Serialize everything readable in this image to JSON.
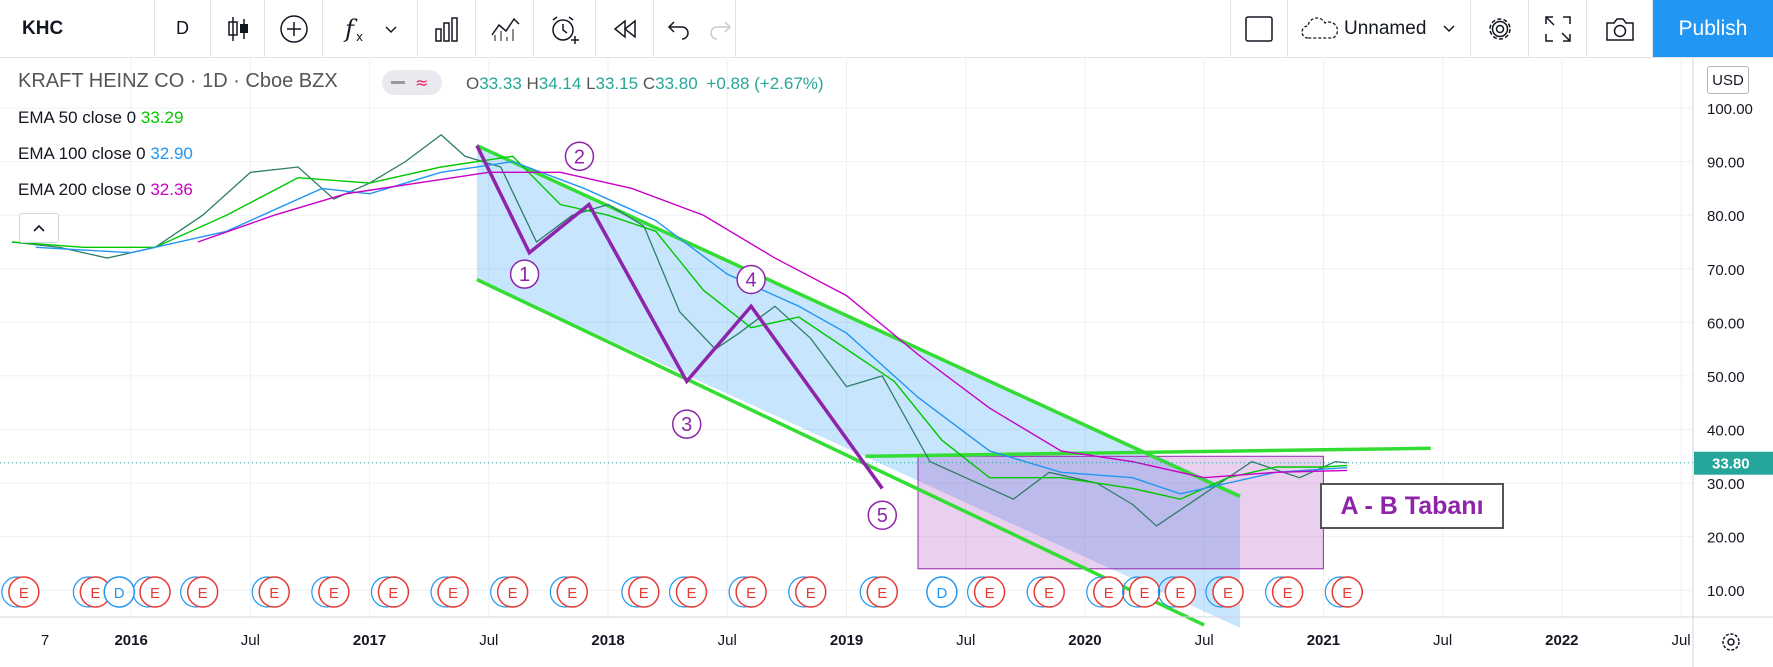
{
  "toolbar": {
    "symbol": "KHC",
    "interval": "D",
    "indicators_icon": "fx-icon",
    "layout_name": "Unnamed",
    "publish_label": "Publish"
  },
  "legend": {
    "title": "KRAFT HEINZ CO · 1D · Cboe BZX",
    "ohlc": {
      "o_label": "O",
      "o": "33.33",
      "h_label": "H",
      "h": "34.14",
      "l_label": "L",
      "l": "33.15",
      "c_label": "C",
      "c": "33.80",
      "change": "+0.88 (+2.67%)"
    },
    "emas": [
      {
        "label": "EMA 50 close 0",
        "value": "33.29",
        "color": "#00c800"
      },
      {
        "label": "EMA 100 close 0",
        "value": "32.90",
        "color": "#2196f3"
      },
      {
        "label": "EMA 200 close 0",
        "value": "32.36",
        "color": "#c800c8"
      }
    ]
  },
  "price_axis": {
    "currency": "USD",
    "last_price": "33.80",
    "last_price_color": "#26a69a"
  },
  "chart_data": {
    "type": "line",
    "title": "KRAFT HEINZ CO · 1D · Cboe BZX",
    "x_ticks": [
      "7",
      "2016",
      "Jul",
      "2017",
      "Jul",
      "2018",
      "Jul",
      "2019",
      "Jul",
      "2020",
      "Jul",
      "2021",
      "Jul",
      "2022",
      "Jul"
    ],
    "y_ticks": [
      "10.00",
      "20.00",
      "30.00",
      "40.00",
      "50.00",
      "60.00",
      "70.00",
      "80.00",
      "90.00",
      "100.00"
    ],
    "ylim": [
      5,
      103
    ],
    "xlim": [
      2015.45,
      2022.55
    ],
    "grid": true,
    "series": [
      {
        "name": "KHC",
        "color": "#26a69a",
        "x": [
          2015.5,
          2015.7,
          2015.9,
          2016.1,
          2016.3,
          2016.5,
          2016.7,
          2016.85,
          2017.0,
          2017.15,
          2017.3,
          2017.4,
          2017.55,
          2017.7,
          2017.85,
          2018.0,
          2018.15,
          2018.3,
          2018.45,
          2018.55,
          2018.7,
          2018.85,
          2019.0,
          2019.15,
          2019.35,
          2019.55,
          2019.7,
          2019.85,
          2020.05,
          2020.2,
          2020.3,
          2020.5,
          2020.7,
          2020.9,
          2021.05,
          2021.1
        ],
        "y": [
          75,
          74,
          72,
          74,
          80,
          88,
          89,
          83,
          86,
          90,
          95,
          91,
          89,
          75,
          80,
          82,
          78,
          62,
          55,
          58,
          63,
          57,
          48,
          50,
          34,
          30,
          27,
          32,
          30,
          26,
          22,
          28,
          34,
          31,
          34,
          33.8
        ]
      },
      {
        "name": "EMA 50 close 0",
        "color": "#00c800",
        "x": [
          2015.5,
          2015.8,
          2016.1,
          2016.4,
          2016.7,
          2017.0,
          2017.3,
          2017.6,
          2017.8,
          2018.0,
          2018.2,
          2018.4,
          2018.6,
          2018.8,
          2019.0,
          2019.2,
          2019.4,
          2019.6,
          2019.9,
          2020.2,
          2020.4,
          2020.6,
          2020.8,
          2021.0,
          2021.1
        ],
        "y": [
          75,
          74,
          74,
          80,
          87,
          86,
          89,
          91,
          82,
          80,
          77,
          66,
          59,
          61,
          55,
          49,
          38,
          31,
          31,
          29,
          27,
          31,
          33,
          33,
          33.29
        ]
      },
      {
        "name": "EMA 100 close 0",
        "color": "#2196f3",
        "x": [
          2015.6,
          2016.0,
          2016.4,
          2016.8,
          2017.0,
          2017.3,
          2017.6,
          2017.9,
          2018.2,
          2018.5,
          2018.8,
          2019.0,
          2019.3,
          2019.6,
          2019.9,
          2020.2,
          2020.4,
          2020.6,
          2020.8,
          2021.1
        ],
        "y": [
          74,
          73,
          77,
          85,
          84,
          88,
          90,
          85,
          79,
          69,
          63,
          58,
          46,
          36,
          32,
          31,
          28,
          30,
          32,
          32.9
        ]
      },
      {
        "name": "EMA 200 close 0",
        "color": "#c800c8",
        "x": [
          2016.28,
          2016.6,
          2016.9,
          2017.2,
          2017.5,
          2017.8,
          2018.1,
          2018.4,
          2018.7,
          2019.0,
          2019.3,
          2019.6,
          2019.9,
          2020.2,
          2020.5,
          2020.8,
          2021.1
        ],
        "y": [
          75,
          80,
          84,
          86,
          88,
          88,
          85,
          80,
          72,
          65,
          54,
          44,
          36,
          34,
          31,
          32,
          32.36
        ]
      }
    ],
    "earnings_markers": [
      "E",
      "E",
      "E",
      "E",
      "E",
      "E",
      "E",
      "E",
      "E",
      "E",
      "E",
      "E",
      "E",
      "E",
      "E",
      "E",
      "E",
      "E",
      "E",
      "E",
      "E",
      "E",
      "E"
    ],
    "dividend_markers": [
      "D",
      "D"
    ],
    "annotations": {
      "wave_labels": [
        "1",
        "2",
        "3",
        "4",
        "5"
      ],
      "box_label": "A - B Tabanı",
      "last_price_label": "33.80"
    }
  },
  "time_axis_icon": "settings-gear-icon"
}
